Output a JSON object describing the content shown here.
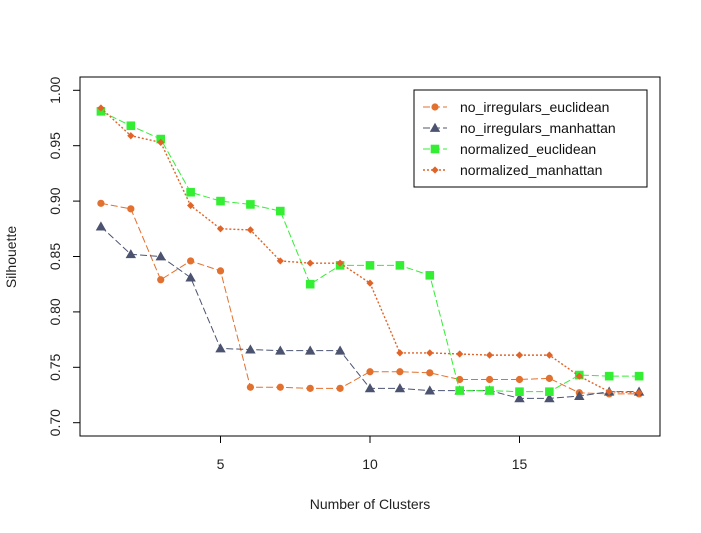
{
  "chart_data": {
    "type": "line",
    "xlabel": "Number of Clusters",
    "ylabel": "Silhouette",
    "xlim": [
      0.3,
      19.7
    ],
    "ylim": [
      0.688,
      1.012
    ],
    "xticks": [
      5,
      10,
      15
    ],
    "yticks": [
      0.7,
      0.75,
      0.8,
      0.85,
      0.9,
      0.95,
      1.0
    ],
    "ytick_labels": [
      "0.70",
      "0.75",
      "0.80",
      "0.85",
      "0.90",
      "0.95",
      "1.00"
    ],
    "grid": false,
    "legend_position": "top-right",
    "x": [
      1,
      2,
      3,
      4,
      5,
      6,
      7,
      8,
      9,
      10,
      11,
      12,
      13,
      14,
      15,
      16,
      17,
      18,
      19
    ],
    "series": [
      {
        "name": "no_irregulars_euclidean",
        "color": "#E2702E",
        "marker": "circle",
        "line_style": "dashed",
        "values": [
          0.898,
          0.893,
          0.829,
          0.846,
          0.837,
          0.732,
          0.732,
          0.731,
          0.731,
          0.746,
          0.746,
          0.745,
          0.739,
          0.739,
          0.739,
          0.74,
          0.727,
          0.726,
          0.726
        ]
      },
      {
        "name": "no_irregulars_manhattan",
        "color": "#4B5370",
        "marker": "triangle",
        "line_style": "dashed",
        "values": [
          0.877,
          0.852,
          0.85,
          0.831,
          0.767,
          0.766,
          0.765,
          0.765,
          0.765,
          0.731,
          0.731,
          0.729,
          0.729,
          0.729,
          0.722,
          0.722,
          0.724,
          0.728,
          0.728
        ]
      },
      {
        "name": "normalized_euclidean",
        "color": "#33EE33",
        "marker": "square",
        "line_style": "dashed",
        "values": [
          0.981,
          0.968,
          0.956,
          0.908,
          0.9,
          0.897,
          0.891,
          0.825,
          0.842,
          0.842,
          0.842,
          0.833,
          0.729,
          0.729,
          0.728,
          0.728,
          0.743,
          0.742,
          0.742
        ]
      },
      {
        "name": "normalized_manhattan",
        "color": "#E06428",
        "marker": "diamond",
        "line_style": "dotted",
        "values": [
          0.984,
          0.959,
          0.953,
          0.896,
          0.875,
          0.874,
          0.846,
          0.844,
          0.844,
          0.826,
          0.763,
          0.763,
          0.762,
          0.761,
          0.761,
          0.761,
          0.742,
          0.728,
          0.727
        ]
      }
    ]
  }
}
